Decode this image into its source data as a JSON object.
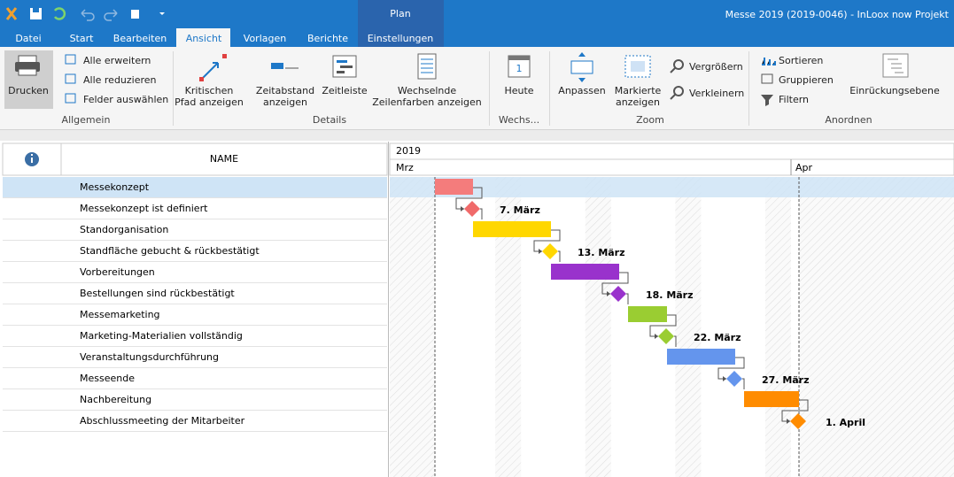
{
  "window": {
    "context_tab": "Plan",
    "title": "Messe 2019 (2019-0046) - InLoox now Projekt"
  },
  "tabs": [
    "Datei",
    "Start",
    "Bearbeiten",
    "Ansicht",
    "Vorlagen",
    "Berichte",
    "Einstellungen"
  ],
  "ribbon": {
    "groups": [
      {
        "label": "Allgemein",
        "items": [
          "Drucken",
          "Alle erweitern",
          "Alle reduzieren",
          "Felder auswählen"
        ]
      },
      {
        "label": "Details",
        "items": [
          "Kritischen\nPfad anzeigen",
          "Zeitabstand\nanzeigen",
          "Zeitleiste",
          "Wechselnde\nZeilenfarben anzeigen"
        ]
      },
      {
        "label": "Wechs...",
        "items": [
          "Heute"
        ]
      },
      {
        "label": "Zoom",
        "items": [
          "Anpassen",
          "Markierte\nanzeigen",
          "Vergrößern",
          "Verkleinern"
        ]
      },
      {
        "label": "Anordnen",
        "items": [
          "Sortieren",
          "Gruppieren",
          "Filtern",
          "Einrückungsebene"
        ]
      }
    ]
  },
  "grid": {
    "column_header": "NAME",
    "rows": [
      "Messekonzept",
      "Messekonzept ist definiert",
      "Standorganisation",
      "Standfläche gebucht & rückbestätigt",
      "Vorbereitungen",
      "Bestellungen sind rückbestätigt",
      "Messemarketing",
      "Marketing-Materialien vollständig",
      "Veranstaltungsdurchführung",
      "Messeende",
      "Nachbereitung",
      "Abschlussmeeting der Mitarbeiter"
    ]
  },
  "timeline": {
    "year": "2019",
    "months": [
      "Mrz",
      "Apr"
    ]
  },
  "gantt": {
    "items": [
      {
        "kind": "bar",
        "color": "#f47c7c"
      },
      {
        "kind": "milestone",
        "color": "#f06a6a",
        "label": "7. März"
      },
      {
        "kind": "bar",
        "color": "#ffd700"
      },
      {
        "kind": "milestone",
        "color": "#ffd700",
        "label": "13. März"
      },
      {
        "kind": "bar",
        "color": "#9932cc"
      },
      {
        "kind": "milestone",
        "color": "#9932cc",
        "label": "18. März"
      },
      {
        "kind": "bar",
        "color": "#9acd32"
      },
      {
        "kind": "milestone",
        "color": "#9acd32",
        "label": "22. März"
      },
      {
        "kind": "bar",
        "color": "#6495ed"
      },
      {
        "kind": "milestone",
        "color": "#6495ed",
        "label": "27. März"
      },
      {
        "kind": "bar",
        "color": "#ff8c00"
      },
      {
        "kind": "milestone",
        "color": "#ff8c00",
        "label": "1. April"
      }
    ]
  }
}
